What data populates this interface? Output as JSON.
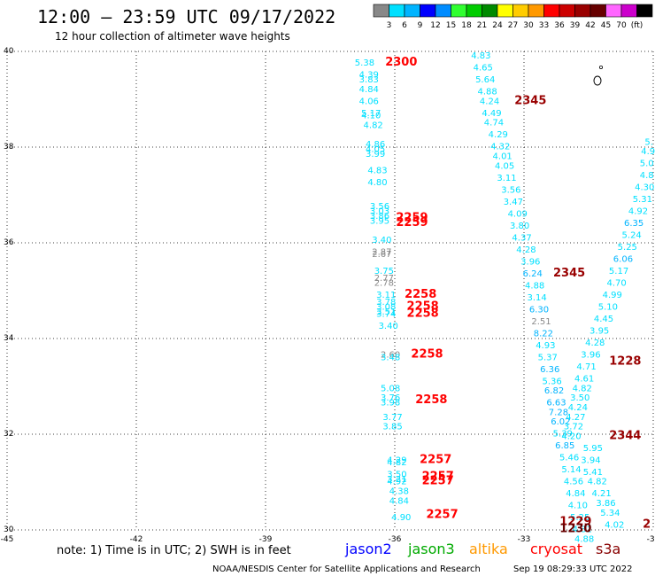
{
  "header": {
    "title": "12:00 – 23:59 UTC 09/17/2022",
    "subtitle": "12 hour collection of altimeter wave heights"
  },
  "colorbar": {
    "colors": [
      "#888888",
      "#00e0ff",
      "#00b4ff",
      "#0000ff",
      "#008cff",
      "#30ff30",
      "#00cc00",
      "#008a00",
      "#ffff00",
      "#ffcc00",
      "#ff9900",
      "#ff0000",
      "#cc0000",
      "#990000",
      "#660000",
      "#ff66ff",
      "#cc00cc",
      "#000000"
    ],
    "labels": [
      "3",
      "6",
      "9",
      "12",
      "15",
      "18",
      "21",
      "24",
      "27",
      "30",
      "33",
      "36",
      "39",
      "42",
      "45",
      "70",
      "(ft)"
    ]
  },
  "chart_data": {
    "type": "scatter",
    "xlim": [
      -45,
      -30
    ],
    "ylim": [
      30,
      40
    ],
    "x_ticks": [
      "-45",
      "-42",
      "-39",
      "-36",
      "-33",
      "-30"
    ],
    "y_ticks": [
      "30",
      "32",
      "34",
      "36",
      "38",
      "40"
    ],
    "grid": true,
    "wave_height_labels": [
      {
        "x": -36.7,
        "y": 39.7,
        "v": "5.38",
        "c": "#00e0ff"
      },
      {
        "x": -36.6,
        "y": 39.45,
        "v": "4.39",
        "c": "#00e0ff"
      },
      {
        "x": -36.6,
        "y": 39.35,
        "v": "3.83",
        "c": "#00e0ff"
      },
      {
        "x": -36.6,
        "y": 39.15,
        "v": "4.84",
        "c": "#00e0ff"
      },
      {
        "x": -36.6,
        "y": 38.9,
        "v": "4.06",
        "c": "#00e0ff"
      },
      {
        "x": -36.55,
        "y": 38.65,
        "v": "5.17",
        "c": "#00e0ff"
      },
      {
        "x": -36.55,
        "y": 38.6,
        "v": "4.10",
        "c": "#00e0ff"
      },
      {
        "x": -36.5,
        "y": 38.4,
        "v": "4.82",
        "c": "#00e0ff"
      },
      {
        "x": -36.45,
        "y": 38.0,
        "v": "4.86",
        "c": "#00e0ff"
      },
      {
        "x": -36.45,
        "y": 37.9,
        "v": "4.05",
        "c": "#00e0ff"
      },
      {
        "x": -36.45,
        "y": 37.8,
        "v": "3.99",
        "c": "#00e0ff"
      },
      {
        "x": -36.4,
        "y": 37.45,
        "v": "4.83",
        "c": "#00e0ff"
      },
      {
        "x": -36.4,
        "y": 37.2,
        "v": "4.80",
        "c": "#00e0ff"
      },
      {
        "x": -36.35,
        "y": 36.7,
        "v": "3.56",
        "c": "#00e0ff"
      },
      {
        "x": -36.35,
        "y": 36.6,
        "v": "3.03",
        "c": "#00e0ff"
      },
      {
        "x": -36.35,
        "y": 36.5,
        "v": "3.86",
        "c": "#00e0ff"
      },
      {
        "x": -36.35,
        "y": 36.4,
        "v": "3.95",
        "c": "#00e0ff"
      },
      {
        "x": -36.3,
        "y": 36.0,
        "v": "3.40",
        "c": "#00e0ff"
      },
      {
        "x": -36.3,
        "y": 35.75,
        "v": "2.87",
        "c": "#888888"
      },
      {
        "x": -36.3,
        "y": 35.7,
        "v": "2.67",
        "c": "#888888"
      },
      {
        "x": -36.25,
        "y": 35.35,
        "v": "3.75",
        "c": "#00e0ff"
      },
      {
        "x": -36.25,
        "y": 35.2,
        "v": "2.77",
        "c": "#888888"
      },
      {
        "x": -36.25,
        "y": 35.1,
        "v": "2.78",
        "c": "#888888"
      },
      {
        "x": -36.2,
        "y": 34.85,
        "v": "3.11",
        "c": "#00e0ff"
      },
      {
        "x": -36.2,
        "y": 34.7,
        "v": "3.78",
        "c": "#00e0ff"
      },
      {
        "x": -36.2,
        "y": 34.6,
        "v": "3.08",
        "c": "#00e0ff"
      },
      {
        "x": -36.2,
        "y": 34.5,
        "v": "3.51",
        "c": "#00e0ff"
      },
      {
        "x": -36.2,
        "y": 34.45,
        "v": "3.74",
        "c": "#00e0ff"
      },
      {
        "x": -36.15,
        "y": 34.2,
        "v": "3.40",
        "c": "#00e0ff"
      },
      {
        "x": -36.1,
        "y": 33.6,
        "v": "2.60",
        "c": "#888888"
      },
      {
        "x": -36.1,
        "y": 33.55,
        "v": "3.48",
        "c": "#00e0ff"
      },
      {
        "x": -36.1,
        "y": 32.9,
        "v": "5.08",
        "c": "#00e0ff"
      },
      {
        "x": -36.1,
        "y": 32.7,
        "v": "3.76",
        "c": "#00e0ff"
      },
      {
        "x": -36.1,
        "y": 32.6,
        "v": "3.98",
        "c": "#00e0ff"
      },
      {
        "x": -36.05,
        "y": 32.3,
        "v": "3.77",
        "c": "#00e0ff"
      },
      {
        "x": -36.05,
        "y": 32.1,
        "v": "3.85",
        "c": "#00e0ff"
      },
      {
        "x": -35.95,
        "y": 31.4,
        "v": "4.29",
        "c": "#00e0ff"
      },
      {
        "x": -35.95,
        "y": 31.35,
        "v": "4.82",
        "c": "#00e0ff"
      },
      {
        "x": -35.95,
        "y": 31.1,
        "v": "3.50",
        "c": "#00e0ff"
      },
      {
        "x": -35.95,
        "y": 31.0,
        "v": "3.21",
        "c": "#00e0ff"
      },
      {
        "x": -35.95,
        "y": 30.95,
        "v": "4.92",
        "c": "#00e0ff"
      },
      {
        "x": -35.9,
        "y": 30.75,
        "v": "4.38",
        "c": "#00e0ff"
      },
      {
        "x": -35.9,
        "y": 30.55,
        "v": "4.84",
        "c": "#00e0ff"
      },
      {
        "x": -35.85,
        "y": 30.2,
        "v": "4.90",
        "c": "#00e0ff"
      },
      {
        "x": -34.0,
        "y": 39.85,
        "v": "4.83",
        "c": "#00e0ff"
      },
      {
        "x": -33.95,
        "y": 39.6,
        "v": "4.65",
        "c": "#00e0ff"
      },
      {
        "x": -33.9,
        "y": 39.35,
        "v": "5.64",
        "c": "#00e0ff"
      },
      {
        "x": -33.85,
        "y": 39.1,
        "v": "4.88",
        "c": "#00e0ff"
      },
      {
        "x": -33.8,
        "y": 38.9,
        "v": "4.24",
        "c": "#00e0ff"
      },
      {
        "x": -33.75,
        "y": 38.65,
        "v": "4.49",
        "c": "#00e0ff"
      },
      {
        "x": -33.7,
        "y": 38.45,
        "v": "4.74",
        "c": "#00e0ff"
      },
      {
        "x": -33.6,
        "y": 38.2,
        "v": "4.29",
        "c": "#00e0ff"
      },
      {
        "x": -33.55,
        "y": 37.95,
        "v": "4.32",
        "c": "#00e0ff"
      },
      {
        "x": -33.5,
        "y": 37.75,
        "v": "4.01",
        "c": "#00e0ff"
      },
      {
        "x": -33.45,
        "y": 37.55,
        "v": "4.05",
        "c": "#00e0ff"
      },
      {
        "x": -33.4,
        "y": 37.3,
        "v": "3.11",
        "c": "#00e0ff"
      },
      {
        "x": -33.3,
        "y": 37.05,
        "v": "3.56",
        "c": "#00e0ff"
      },
      {
        "x": -33.25,
        "y": 36.8,
        "v": "3.47",
        "c": "#00e0ff"
      },
      {
        "x": -33.15,
        "y": 36.55,
        "v": "4.09",
        "c": "#00e0ff"
      },
      {
        "x": -33.1,
        "y": 36.3,
        "v": "3.80",
        "c": "#00e0ff"
      },
      {
        "x": -33.05,
        "y": 36.05,
        "v": "4.37",
        "c": "#00e0ff"
      },
      {
        "x": -32.95,
        "y": 35.8,
        "v": "4.28",
        "c": "#00e0ff"
      },
      {
        "x": -32.85,
        "y": 35.55,
        "v": "3.96",
        "c": "#00e0ff"
      },
      {
        "x": -32.8,
        "y": 35.3,
        "v": "6.24",
        "c": "#00b4ff"
      },
      {
        "x": -32.75,
        "y": 35.05,
        "v": "4.88",
        "c": "#00e0ff"
      },
      {
        "x": -32.7,
        "y": 34.8,
        "v": "3.14",
        "c": "#00e0ff"
      },
      {
        "x": -32.65,
        "y": 34.55,
        "v": "6.30",
        "c": "#00b4ff"
      },
      {
        "x": -32.6,
        "y": 34.3,
        "v": "2.51",
        "c": "#888888"
      },
      {
        "x": -32.55,
        "y": 34.05,
        "v": "8.22",
        "c": "#00b4ff"
      },
      {
        "x": -32.5,
        "y": 33.8,
        "v": "4.93",
        "c": "#00e0ff"
      },
      {
        "x": -32.45,
        "y": 33.55,
        "v": "5.37",
        "c": "#00e0ff"
      },
      {
        "x": -32.4,
        "y": 33.3,
        "v": "6.36",
        "c": "#00b4ff"
      },
      {
        "x": -32.35,
        "y": 33.05,
        "v": "5.36",
        "c": "#00e0ff"
      },
      {
        "x": -32.3,
        "y": 32.85,
        "v": "6.82",
        "c": "#00b4ff"
      },
      {
        "x": -32.25,
        "y": 32.6,
        "v": "6.63",
        "c": "#00b4ff"
      },
      {
        "x": -32.2,
        "y": 32.4,
        "v": "7.28",
        "c": "#00b4ff"
      },
      {
        "x": -32.15,
        "y": 32.2,
        "v": "6.02",
        "c": "#00b4ff"
      },
      {
        "x": -32.1,
        "y": 31.95,
        "v": "5.39",
        "c": "#00e0ff"
      },
      {
        "x": -32.05,
        "y": 31.7,
        "v": "6.85",
        "c": "#00b4ff"
      },
      {
        "x": -31.95,
        "y": 31.45,
        "v": "5.46",
        "c": "#00e0ff"
      },
      {
        "x": -31.9,
        "y": 31.2,
        "v": "5.14",
        "c": "#00e0ff"
      },
      {
        "x": -31.85,
        "y": 30.95,
        "v": "4.56",
        "c": "#00e0ff"
      },
      {
        "x": -31.8,
        "y": 30.7,
        "v": "4.84",
        "c": "#00e0ff"
      },
      {
        "x": -31.75,
        "y": 30.45,
        "v": "4.10",
        "c": "#00e0ff"
      },
      {
        "x": -31.7,
        "y": 30.2,
        "v": "5.25",
        "c": "#00e0ff"
      },
      {
        "x": -31.65,
        "y": 29.95,
        "v": "4.31",
        "c": "#00e0ff"
      },
      {
        "x": -31.6,
        "y": 29.75,
        "v": "4.88",
        "c": "#00e0ff"
      },
      {
        "x": -30.1,
        "y": 38.05,
        "v": "5.",
        "c": "#00e0ff"
      },
      {
        "x": -30.12,
        "y": 37.85,
        "v": "4.9",
        "c": "#00e0ff"
      },
      {
        "x": -30.15,
        "y": 37.6,
        "v": "5.0",
        "c": "#00e0ff"
      },
      {
        "x": -30.15,
        "y": 37.35,
        "v": "4.8",
        "c": "#00e0ff"
      },
      {
        "x": -30.2,
        "y": 37.1,
        "v": "4.30",
        "c": "#00e0ff"
      },
      {
        "x": -30.25,
        "y": 36.85,
        "v": "5.31",
        "c": "#00e0ff"
      },
      {
        "x": -30.35,
        "y": 36.6,
        "v": "4.92",
        "c": "#00e0ff"
      },
      {
        "x": -30.45,
        "y": 36.35,
        "v": "6.35",
        "c": "#00b4ff"
      },
      {
        "x": -30.5,
        "y": 36.1,
        "v": "5.24",
        "c": "#00e0ff"
      },
      {
        "x": -30.6,
        "y": 35.85,
        "v": "5.25",
        "c": "#00e0ff"
      },
      {
        "x": -30.7,
        "y": 35.6,
        "v": "6.06",
        "c": "#00b4ff"
      },
      {
        "x": -30.8,
        "y": 35.35,
        "v": "5.17",
        "c": "#00e0ff"
      },
      {
        "x": -30.85,
        "y": 35.1,
        "v": "4.70",
        "c": "#00e0ff"
      },
      {
        "x": -30.95,
        "y": 34.85,
        "v": "4.99",
        "c": "#00e0ff"
      },
      {
        "x": -31.05,
        "y": 34.6,
        "v": "5.10",
        "c": "#00e0ff"
      },
      {
        "x": -31.15,
        "y": 34.35,
        "v": "4.45",
        "c": "#00e0ff"
      },
      {
        "x": -31.25,
        "y": 34.1,
        "v": "3.95",
        "c": "#00e0ff"
      },
      {
        "x": -31.35,
        "y": 33.85,
        "v": "4.28",
        "c": "#00e0ff"
      },
      {
        "x": -31.45,
        "y": 33.6,
        "v": "3.96",
        "c": "#00e0ff"
      },
      {
        "x": -31.55,
        "y": 33.35,
        "v": "4.71",
        "c": "#00e0ff"
      },
      {
        "x": -31.6,
        "y": 33.1,
        "v": "4.61",
        "c": "#00e0ff"
      },
      {
        "x": -31.65,
        "y": 32.9,
        "v": "4.82",
        "c": "#00e0ff"
      },
      {
        "x": -31.7,
        "y": 32.7,
        "v": "3.50",
        "c": "#00e0ff"
      },
      {
        "x": -31.75,
        "y": 32.5,
        "v": "4.24",
        "c": "#00e0ff"
      },
      {
        "x": -31.8,
        "y": 32.3,
        "v": "4.27",
        "c": "#00e0ff"
      },
      {
        "x": -31.85,
        "y": 32.1,
        "v": "3.72",
        "c": "#00e0ff"
      },
      {
        "x": -31.9,
        "y": 31.9,
        "v": "4.20",
        "c": "#00e0ff"
      },
      {
        "x": -31.4,
        "y": 31.65,
        "v": "5.95",
        "c": "#00e0ff"
      },
      {
        "x": -31.45,
        "y": 31.4,
        "v": "3.94",
        "c": "#00e0ff"
      },
      {
        "x": -31.4,
        "y": 31.15,
        "v": "5.41",
        "c": "#00e0ff"
      },
      {
        "x": -31.3,
        "y": 30.95,
        "v": "4.82",
        "c": "#00e0ff"
      },
      {
        "x": -31.2,
        "y": 30.7,
        "v": "4.21",
        "c": "#00e0ff"
      },
      {
        "x": -31.1,
        "y": 30.5,
        "v": "3.86",
        "c": "#00e0ff"
      },
      {
        "x": -31.0,
        "y": 30.3,
        "v": "5.34",
        "c": "#00e0ff"
      },
      {
        "x": -30.9,
        "y": 30.05,
        "v": "4.02",
        "c": "#00e0ff"
      }
    ],
    "time_labels": [
      {
        "x": -35.85,
        "y": 39.7,
        "v": "2300",
        "c": "#ff0000"
      },
      {
        "x": -32.85,
        "y": 38.9,
        "v": "2345",
        "c": "#990000"
      },
      {
        "x": -35.6,
        "y": 36.45,
        "v": "2259",
        "c": "#ff0000"
      },
      {
        "x": -35.6,
        "y": 36.35,
        "v": "2259",
        "c": "#ff0000"
      },
      {
        "x": -31.95,
        "y": 35.3,
        "v": "2345",
        "c": "#990000"
      },
      {
        "x": -35.4,
        "y": 34.85,
        "v": "2258",
        "c": "#ff0000"
      },
      {
        "x": -35.35,
        "y": 34.6,
        "v": "2258",
        "c": "#ff0000"
      },
      {
        "x": -35.35,
        "y": 34.45,
        "v": "2258",
        "c": "#ff0000"
      },
      {
        "x": -35.25,
        "y": 33.6,
        "v": "2258",
        "c": "#ff0000"
      },
      {
        "x": -35.15,
        "y": 32.65,
        "v": "2258",
        "c": "#ff0000"
      },
      {
        "x": -35.05,
        "y": 31.4,
        "v": "2257",
        "c": "#ff0000"
      },
      {
        "x": -35.0,
        "y": 31.05,
        "v": "2257",
        "c": "#ff0000"
      },
      {
        "x": -35.0,
        "y": 30.95,
        "v": "2257",
        "c": "#ff0000"
      },
      {
        "x": -34.9,
        "y": 30.25,
        "v": "2257",
        "c": "#ff0000"
      },
      {
        "x": -30.65,
        "y": 33.45,
        "v": "1228",
        "c": "#990000"
      },
      {
        "x": -30.65,
        "y": 31.9,
        "v": "2344",
        "c": "#990000"
      },
      {
        "x": -31.8,
        "y": 30.1,
        "v": "1229",
        "c": "#990000"
      },
      {
        "x": -31.8,
        "y": 29.95,
        "v": "1230",
        "c": "#660000"
      },
      {
        "x": -30.15,
        "y": 30.05,
        "v": "2",
        "c": "#990000"
      }
    ]
  },
  "footer": {
    "note": "note:  1) Time is in UTC; 2) SWH is in feet",
    "satellites": [
      {
        "name": "jason2",
        "color": "#0000ff"
      },
      {
        "name": "jason3",
        "color": "#00aa00"
      },
      {
        "name": "altika",
        "color": "#ff9900"
      },
      {
        "name": "cryosat",
        "color": "#ff0000"
      },
      {
        "name": "s3a",
        "color": "#880000"
      }
    ],
    "credit": "NOAA/NESDIS Center for Satellite Applications and Research",
    "timestamp": "Sep 19 08:29:33 UTC 2022"
  }
}
